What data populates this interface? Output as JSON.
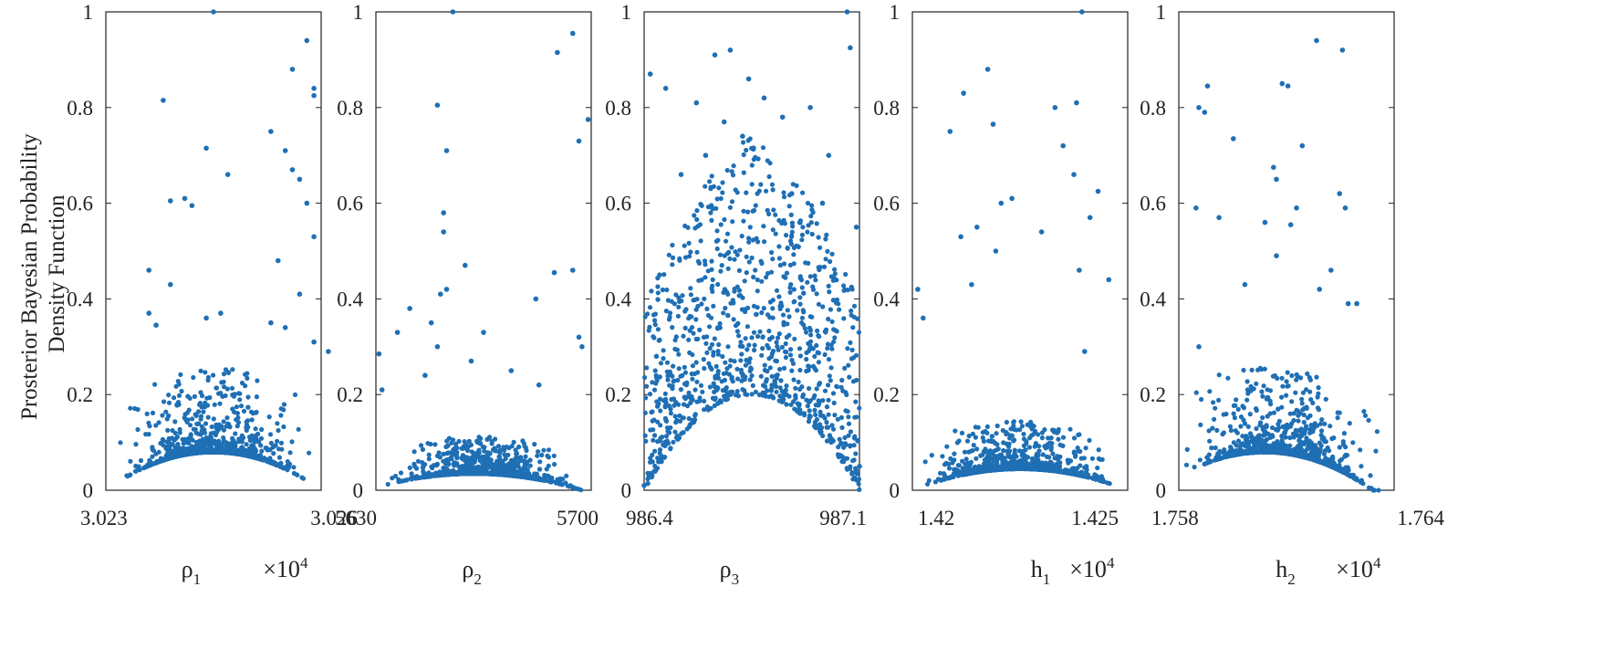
{
  "figure": {
    "ylabel_lines": [
      "Prosterior Bayesian Probability",
      "Density Function"
    ],
    "marker_color": "#1f6fb4",
    "ylim": [
      0,
      1
    ],
    "yticks": [
      "0",
      "0.2",
      "0.4",
      "0.6",
      "0.8",
      "1"
    ]
  },
  "chart_data": [
    {
      "type": "scatter",
      "xlabel_base": "ρ",
      "xlabel_sub": "1",
      "multiplier": "×10",
      "multiplier_exp": "4",
      "xlim": [
        3.023,
        3.026
      ],
      "xticks": [
        "3.023",
        "3.026"
      ],
      "ylabel": "Prosterior Bayesian Probability Density Function",
      "ylim": [
        0,
        1
      ],
      "summary": {
        "n_points": 1000,
        "lower_envelope_peak": 0.08,
        "peak_x": 3.0245,
        "max": 1.0
      },
      "points": [
        [
          3.0245,
          1.0
        ],
        [
          3.0258,
          0.94
        ],
        [
          3.0238,
          0.815
        ],
        [
          3.0256,
          0.88
        ],
        [
          3.0253,
          0.75
        ],
        [
          3.0259,
          0.84
        ],
        [
          3.0244,
          0.715
        ],
        [
          3.0247,
          0.66
        ],
        [
          3.0241,
          0.61
        ],
        [
          3.0239,
          0.605
        ],
        [
          3.0242,
          0.595
        ],
        [
          3.0255,
          0.71
        ],
        [
          3.0256,
          0.67
        ],
        [
          3.0257,
          0.65
        ],
        [
          3.0258,
          0.6
        ],
        [
          3.0259,
          0.53
        ],
        [
          3.0236,
          0.46
        ],
        [
          3.0254,
          0.48
        ],
        [
          3.0257,
          0.41
        ],
        [
          3.0239,
          0.43
        ],
        [
          3.0236,
          0.37
        ],
        [
          3.0244,
          0.36
        ],
        [
          3.0246,
          0.37
        ],
        [
          3.0253,
          0.35
        ],
        [
          3.0255,
          0.34
        ],
        [
          3.0237,
          0.345
        ],
        [
          3.0259,
          0.31
        ],
        [
          3.0261,
          0.29
        ],
        [
          3.0259,
          0.825
        ]
      ]
    },
    {
      "type": "scatter",
      "xlabel_base": "ρ",
      "xlabel_sub": "2",
      "xlim": [
        5630,
        5700
      ],
      "xticks": [
        "5630",
        "5700"
      ],
      "ylabel": "Prosterior Bayesian Probability Density Function",
      "ylim": [
        0,
        1
      ],
      "summary": {
        "n_points": 1000,
        "lower_envelope_peak": 0.035,
        "peak_x": 5662,
        "max": 1.0
      },
      "points": [
        [
          5655,
          1.0
        ],
        [
          5694,
          0.955
        ],
        [
          5689,
          0.915
        ],
        [
          5699,
          0.775
        ],
        [
          5650,
          0.805
        ],
        [
          5653,
          0.71
        ],
        [
          5696,
          0.73
        ],
        [
          5652,
          0.58
        ],
        [
          5652,
          0.54
        ],
        [
          5659,
          0.47
        ],
        [
          5651,
          0.41
        ],
        [
          5653,
          0.42
        ],
        [
          5688,
          0.455
        ],
        [
          5694,
          0.46
        ],
        [
          5682,
          0.4
        ],
        [
          5665,
          0.33
        ],
        [
          5641,
          0.38
        ],
        [
          5637,
          0.33
        ],
        [
          5648,
          0.35
        ],
        [
          5696,
          0.32
        ],
        [
          5697,
          0.3
        ],
        [
          5631,
          0.285
        ],
        [
          5650,
          0.3
        ],
        [
          5661,
          0.27
        ],
        [
          5674,
          0.25
        ],
        [
          5683,
          0.22
        ],
        [
          5646,
          0.24
        ],
        [
          5632,
          0.21
        ]
      ]
    },
    {
      "type": "scatter",
      "xlabel_base": "ρ",
      "xlabel_sub": "3",
      "xlim": [
        986.4,
        987.1
      ],
      "xticks": [
        "986.4",
        "987.1"
      ],
      "ylabel": "Prosterior Bayesian Probability Density Function",
      "ylim": [
        0,
        1
      ],
      "summary": {
        "n_points": 1000,
        "lower_envelope_peak": 0.2,
        "peak_x": 986.75,
        "max": 1.0
      },
      "points": [
        [
          987.06,
          1.0
        ],
        [
          987.07,
          0.925
        ],
        [
          986.63,
          0.91
        ],
        [
          986.68,
          0.92
        ],
        [
          986.42,
          0.87
        ],
        [
          986.47,
          0.84
        ],
        [
          986.74,
          0.86
        ],
        [
          986.79,
          0.82
        ],
        [
          986.85,
          0.78
        ],
        [
          986.57,
          0.81
        ],
        [
          986.66,
          0.77
        ],
        [
          986.72,
          0.74
        ],
        [
          986.6,
          0.7
        ],
        [
          987.0,
          0.7
        ],
        [
          986.94,
          0.8
        ],
        [
          986.52,
          0.66
        ],
        [
          986.88,
          0.62
        ],
        [
          986.98,
          0.6
        ],
        [
          987.09,
          0.55
        ],
        [
          986.45,
          0.45
        ],
        [
          986.44,
          0.28
        ],
        [
          987.1,
          0.05
        ],
        [
          986.4,
          0.01
        ]
      ]
    },
    {
      "type": "scatter",
      "xlabel_base": "h",
      "xlabel_sub": "1",
      "multiplier": "×10",
      "multiplier_exp": "4",
      "xlim": [
        1.4185,
        1.4265
      ],
      "xticks": [
        "1.42",
        "1.425"
      ],
      "ylabel": "Prosterior Bayesian Probability Density Function",
      "ylim": [
        0,
        1
      ],
      "summary": {
        "n_points": 1000,
        "lower_envelope_peak": 0.045,
        "peak_x": 1.4225,
        "max": 1.0
      },
      "points": [
        [
          1.4248,
          1.0
        ],
        [
          1.4213,
          0.88
        ],
        [
          1.4204,
          0.83
        ],
        [
          1.4199,
          0.75
        ],
        [
          1.4215,
          0.765
        ],
        [
          1.4246,
          0.81
        ],
        [
          1.4238,
          0.8
        ],
        [
          1.4241,
          0.72
        ],
        [
          1.4245,
          0.66
        ],
        [
          1.4218,
          0.6
        ],
        [
          1.4222,
          0.61
        ],
        [
          1.4203,
          0.53
        ],
        [
          1.4209,
          0.55
        ],
        [
          1.4233,
          0.54
        ],
        [
          1.4216,
          0.5
        ],
        [
          1.4254,
          0.625
        ],
        [
          1.4251,
          0.57
        ],
        [
          1.4187,
          0.42
        ],
        [
          1.4207,
          0.43
        ],
        [
          1.4258,
          0.44
        ],
        [
          1.4247,
          0.46
        ],
        [
          1.4189,
          0.36
        ],
        [
          1.4249,
          0.29
        ]
      ]
    },
    {
      "type": "scatter",
      "xlabel_base": "h",
      "xlabel_sub": "2",
      "multiplier": "×10",
      "multiplier_exp": "4",
      "xlim": [
        1.7575,
        1.765
      ],
      "xticks": [
        "1.758",
        "1.764"
      ],
      "ylabel": "Prosterior Bayesian Probability Density Function",
      "ylim": [
        0,
        1
      ],
      "summary": {
        "n_points": 1000,
        "lower_envelope_peak": 0.08,
        "peak_x": 1.7605,
        "max": 0.94
      },
      "points": [
        [
          1.7623,
          0.94
        ],
        [
          1.7632,
          0.92
        ],
        [
          1.7613,
          0.845
        ],
        [
          1.7611,
          0.85
        ],
        [
          1.7582,
          0.8
        ],
        [
          1.7584,
          0.79
        ],
        [
          1.7585,
          0.845
        ],
        [
          1.7594,
          0.735
        ],
        [
          1.7618,
          0.72
        ],
        [
          1.7608,
          0.675
        ],
        [
          1.7609,
          0.65
        ],
        [
          1.7631,
          0.62
        ],
        [
          1.7633,
          0.59
        ],
        [
          1.7616,
          0.59
        ],
        [
          1.7605,
          0.56
        ],
        [
          1.7614,
          0.555
        ],
        [
          1.7589,
          0.57
        ],
        [
          1.7581,
          0.59
        ],
        [
          1.7609,
          0.49
        ],
        [
          1.7628,
          0.46
        ],
        [
          1.7598,
          0.43
        ],
        [
          1.7624,
          0.42
        ],
        [
          1.7634,
          0.39
        ],
        [
          1.7637,
          0.39
        ],
        [
          1.7582,
          0.3
        ]
      ]
    }
  ]
}
